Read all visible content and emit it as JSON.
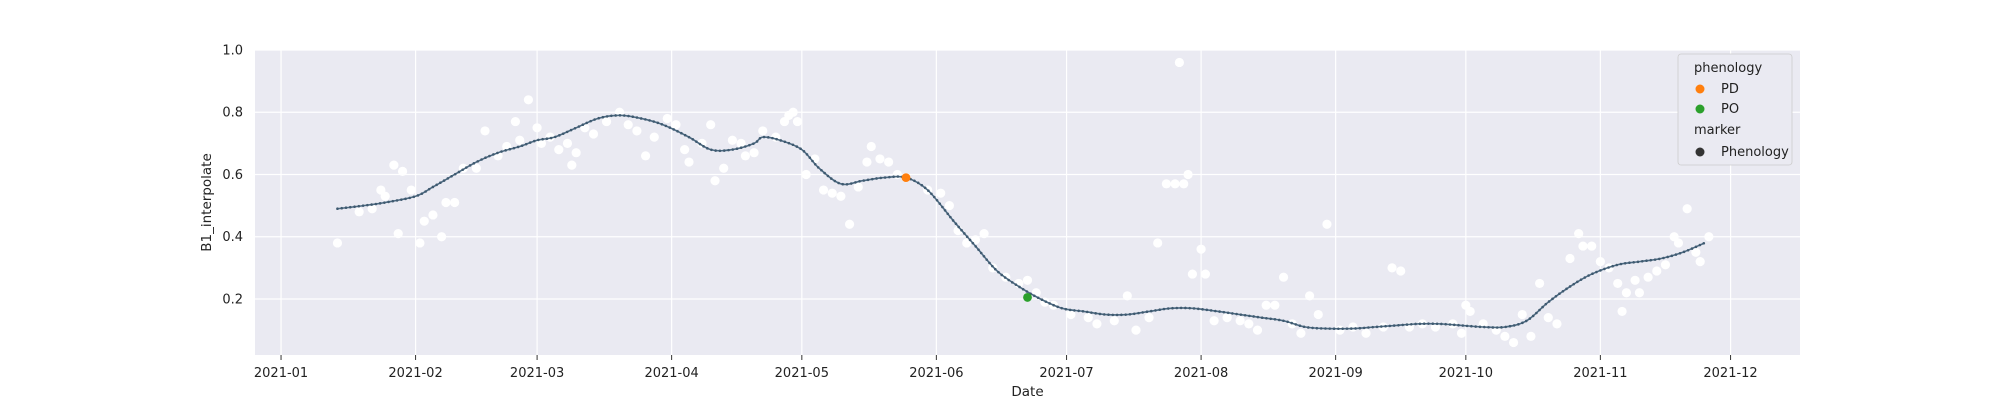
{
  "chart_data": {
    "type": "scatter",
    "xlabel": "Date",
    "ylabel": "B1_interpolate",
    "xlim": [
      "2020-12-26",
      "2021-12-17"
    ],
    "ylim": [
      0.02,
      1.0
    ],
    "grid": true,
    "x_ticks": [
      "2021-01",
      "2021-02",
      "2021-03",
      "2021-04",
      "2021-05",
      "2021-06",
      "2021-07",
      "2021-08",
      "2021-09",
      "2021-10",
      "2021-11",
      "2021-12"
    ],
    "y_ticks": [
      "0.2",
      "0.4",
      "0.6",
      "0.8",
      "1.0"
    ],
    "colors": {
      "background": "#eaeaf2",
      "grid": "#ffffff",
      "observations": "#ffffff",
      "curve": "#4c6a82",
      "PD": "#ff7f0e",
      "PO": "#2ca02c",
      "marker": "#333333"
    },
    "legend": {
      "placement": "top-right",
      "title_hue": "phenology",
      "title_marker": "marker",
      "entries": [
        {
          "label": "PD",
          "color": "#ff7f0e"
        },
        {
          "label": "PO",
          "color": "#2ca02c"
        }
      ],
      "marker_entries": [
        {
          "label": "Phenology",
          "color": "#333333"
        }
      ]
    },
    "interpolated_curve": [
      [
        "2021-01-14",
        0.49
      ],
      [
        "2021-01-20",
        0.5
      ],
      [
        "2021-01-25",
        0.51
      ],
      [
        "2021-02-01",
        0.53
      ],
      [
        "2021-02-05",
        0.56
      ],
      [
        "2021-02-10",
        0.6
      ],
      [
        "2021-02-15",
        0.64
      ],
      [
        "2021-02-20",
        0.67
      ],
      [
        "2021-02-25",
        0.69
      ],
      [
        "2021-03-01",
        0.71
      ],
      [
        "2021-03-05",
        0.72
      ],
      [
        "2021-03-10",
        0.75
      ],
      [
        "2021-03-15",
        0.78
      ],
      [
        "2021-03-20",
        0.79
      ],
      [
        "2021-03-25",
        0.78
      ],
      [
        "2021-03-30",
        0.76
      ],
      [
        "2021-04-05",
        0.72
      ],
      [
        "2021-04-10",
        0.68
      ],
      [
        "2021-04-15",
        0.68
      ],
      [
        "2021-04-20",
        0.7
      ],
      [
        "2021-04-22",
        0.72
      ],
      [
        "2021-04-26",
        0.71
      ],
      [
        "2021-05-01",
        0.68
      ],
      [
        "2021-05-05",
        0.62
      ],
      [
        "2021-05-10",
        0.57
      ],
      [
        "2021-05-15",
        0.58
      ],
      [
        "2021-05-20",
        0.59
      ],
      [
        "2021-05-25",
        0.59
      ],
      [
        "2021-05-30",
        0.55
      ],
      [
        "2021-06-05",
        0.45
      ],
      [
        "2021-06-10",
        0.37
      ],
      [
        "2021-06-15",
        0.29
      ],
      [
        "2021-06-20",
        0.24
      ],
      [
        "2021-06-25",
        0.2
      ],
      [
        "2021-06-30",
        0.17
      ],
      [
        "2021-07-05",
        0.16
      ],
      [
        "2021-07-10",
        0.15
      ],
      [
        "2021-07-15",
        0.15
      ],
      [
        "2021-07-20",
        0.16
      ],
      [
        "2021-07-25",
        0.17
      ],
      [
        "2021-07-30",
        0.17
      ],
      [
        "2021-08-05",
        0.16
      ],
      [
        "2021-08-10",
        0.15
      ],
      [
        "2021-08-15",
        0.14
      ],
      [
        "2021-08-20",
        0.13
      ],
      [
        "2021-08-25",
        0.11
      ],
      [
        "2021-08-30",
        0.105
      ],
      [
        "2021-09-05",
        0.105
      ],
      [
        "2021-09-10",
        0.11
      ],
      [
        "2021-09-15",
        0.115
      ],
      [
        "2021-09-20",
        0.12
      ],
      [
        "2021-09-25",
        0.12
      ],
      [
        "2021-09-30",
        0.115
      ],
      [
        "2021-10-05",
        0.11
      ],
      [
        "2021-10-10",
        0.11
      ],
      [
        "2021-10-15",
        0.13
      ],
      [
        "2021-10-20",
        0.19
      ],
      [
        "2021-10-25",
        0.24
      ],
      [
        "2021-10-30",
        0.28
      ],
      [
        "2021-11-05",
        0.31
      ],
      [
        "2021-11-10",
        0.32
      ],
      [
        "2021-11-15",
        0.33
      ],
      [
        "2021-11-20",
        0.35
      ],
      [
        "2021-11-25",
        0.38
      ]
    ],
    "observations": [
      [
        "2021-01-14",
        0.38
      ],
      [
        "2021-01-19",
        0.48
      ],
      [
        "2021-01-22",
        0.49
      ],
      [
        "2021-01-24",
        0.55
      ],
      [
        "2021-01-25",
        0.53
      ],
      [
        "2021-01-27",
        0.63
      ],
      [
        "2021-01-28",
        0.41
      ],
      [
        "2021-01-29",
        0.61
      ],
      [
        "2021-01-31",
        0.55
      ],
      [
        "2021-02-02",
        0.38
      ],
      [
        "2021-02-03",
        0.45
      ],
      [
        "2021-02-05",
        0.47
      ],
      [
        "2021-02-07",
        0.4
      ],
      [
        "2021-02-08",
        0.51
      ],
      [
        "2021-02-10",
        0.51
      ],
      [
        "2021-02-12",
        0.62
      ],
      [
        "2021-02-15",
        0.62
      ],
      [
        "2021-02-17",
        0.74
      ],
      [
        "2021-02-20",
        0.66
      ],
      [
        "2021-02-22",
        0.69
      ],
      [
        "2021-02-24",
        0.77
      ],
      [
        "2021-02-25",
        0.71
      ],
      [
        "2021-02-27",
        0.84
      ],
      [
        "2021-03-01",
        0.75
      ],
      [
        "2021-03-02",
        0.7
      ],
      [
        "2021-03-04",
        0.72
      ],
      [
        "2021-03-06",
        0.68
      ],
      [
        "2021-03-08",
        0.7
      ],
      [
        "2021-03-09",
        0.63
      ],
      [
        "2021-03-10",
        0.67
      ],
      [
        "2021-03-12",
        0.75
      ],
      [
        "2021-03-14",
        0.73
      ],
      [
        "2021-03-17",
        0.77
      ],
      [
        "2021-03-20",
        0.8
      ],
      [
        "2021-03-22",
        0.76
      ],
      [
        "2021-03-24",
        0.74
      ],
      [
        "2021-03-26",
        0.66
      ],
      [
        "2021-03-28",
        0.72
      ],
      [
        "2021-03-31",
        0.78
      ],
      [
        "2021-04-02",
        0.76
      ],
      [
        "2021-04-04",
        0.68
      ],
      [
        "2021-04-05",
        0.64
      ],
      [
        "2021-04-08",
        0.7
      ],
      [
        "2021-04-10",
        0.76
      ],
      [
        "2021-04-11",
        0.58
      ],
      [
        "2021-04-13",
        0.62
      ],
      [
        "2021-04-15",
        0.71
      ],
      [
        "2021-04-17",
        0.7
      ],
      [
        "2021-04-18",
        0.66
      ],
      [
        "2021-04-20",
        0.67
      ],
      [
        "2021-04-22",
        0.74
      ],
      [
        "2021-04-25",
        0.72
      ],
      [
        "2021-04-27",
        0.77
      ],
      [
        "2021-04-28",
        0.79
      ],
      [
        "2021-04-29",
        0.8
      ],
      [
        "2021-04-30",
        0.77
      ],
      [
        "2021-05-02",
        0.6
      ],
      [
        "2021-05-04",
        0.65
      ],
      [
        "2021-05-06",
        0.55
      ],
      [
        "2021-05-08",
        0.54
      ],
      [
        "2021-05-10",
        0.53
      ],
      [
        "2021-05-12",
        0.44
      ],
      [
        "2021-05-14",
        0.56
      ],
      [
        "2021-05-16",
        0.64
      ],
      [
        "2021-05-17",
        0.69
      ],
      [
        "2021-05-19",
        0.65
      ],
      [
        "2021-05-21",
        0.64
      ],
      [
        "2021-05-23",
        0.6
      ],
      [
        "2021-05-25",
        0.59
      ],
      [
        "2021-05-30",
        0.55
      ],
      [
        "2021-06-02",
        0.54
      ],
      [
        "2021-06-04",
        0.5
      ],
      [
        "2021-06-06",
        0.42
      ],
      [
        "2021-06-08",
        0.38
      ],
      [
        "2021-06-10",
        0.39
      ],
      [
        "2021-06-12",
        0.41
      ],
      [
        "2021-06-14",
        0.3
      ],
      [
        "2021-06-17",
        0.27
      ],
      [
        "2021-06-20",
        0.25
      ],
      [
        "2021-06-22",
        0.26
      ],
      [
        "2021-06-24",
        0.22
      ],
      [
        "2021-06-26",
        0.19
      ],
      [
        "2021-06-28",
        0.18
      ],
      [
        "2021-07-02",
        0.15
      ],
      [
        "2021-07-06",
        0.14
      ],
      [
        "2021-07-08",
        0.12
      ],
      [
        "2021-07-12",
        0.13
      ],
      [
        "2021-07-15",
        0.21
      ],
      [
        "2021-07-17",
        0.1
      ],
      [
        "2021-07-20",
        0.14
      ],
      [
        "2021-07-22",
        0.38
      ],
      [
        "2021-07-24",
        0.57
      ],
      [
        "2021-07-26",
        0.57
      ],
      [
        "2021-07-27",
        0.96
      ],
      [
        "2021-07-28",
        0.57
      ],
      [
        "2021-07-29",
        0.6
      ],
      [
        "2021-07-30",
        0.28
      ],
      [
        "2021-08-01",
        0.36
      ],
      [
        "2021-08-02",
        0.28
      ],
      [
        "2021-08-04",
        0.13
      ],
      [
        "2021-08-07",
        0.14
      ],
      [
        "2021-08-10",
        0.13
      ],
      [
        "2021-08-12",
        0.12
      ],
      [
        "2021-08-14",
        0.1
      ],
      [
        "2021-08-16",
        0.18
      ],
      [
        "2021-08-18",
        0.18
      ],
      [
        "2021-08-20",
        0.27
      ],
      [
        "2021-08-22",
        0.12
      ],
      [
        "2021-08-24",
        0.09
      ],
      [
        "2021-08-26",
        0.21
      ],
      [
        "2021-08-28",
        0.15
      ],
      [
        "2021-08-30",
        0.44
      ],
      [
        "2021-09-02",
        0.1
      ],
      [
        "2021-09-05",
        0.11
      ],
      [
        "2021-09-08",
        0.09
      ],
      [
        "2021-09-12",
        0.11
      ],
      [
        "2021-09-14",
        0.3
      ],
      [
        "2021-09-16",
        0.29
      ],
      [
        "2021-09-18",
        0.11
      ],
      [
        "2021-09-21",
        0.12
      ],
      [
        "2021-09-24",
        0.11
      ],
      [
        "2021-09-28",
        0.12
      ],
      [
        "2021-09-30",
        0.09
      ],
      [
        "2021-10-01",
        0.18
      ],
      [
        "2021-10-02",
        0.16
      ],
      [
        "2021-10-05",
        0.12
      ],
      [
        "2021-10-08",
        0.1
      ],
      [
        "2021-10-10",
        0.08
      ],
      [
        "2021-10-12",
        0.06
      ],
      [
        "2021-10-14",
        0.15
      ],
      [
        "2021-10-16",
        0.08
      ],
      [
        "2021-10-18",
        0.25
      ],
      [
        "2021-10-20",
        0.14
      ],
      [
        "2021-10-22",
        0.12
      ],
      [
        "2021-10-25",
        0.33
      ],
      [
        "2021-10-27",
        0.41
      ],
      [
        "2021-10-28",
        0.37
      ],
      [
        "2021-10-30",
        0.37
      ],
      [
        "2021-11-01",
        0.32
      ],
      [
        "2021-11-03",
        0.3
      ],
      [
        "2021-11-05",
        0.25
      ],
      [
        "2021-11-06",
        0.16
      ],
      [
        "2021-11-07",
        0.22
      ],
      [
        "2021-11-09",
        0.26
      ],
      [
        "2021-11-10",
        0.22
      ],
      [
        "2021-11-12",
        0.27
      ],
      [
        "2021-11-14",
        0.29
      ],
      [
        "2021-11-16",
        0.31
      ],
      [
        "2021-11-18",
        0.4
      ],
      [
        "2021-11-19",
        0.38
      ],
      [
        "2021-11-21",
        0.49
      ],
      [
        "2021-11-23",
        0.35
      ],
      [
        "2021-11-24",
        0.32
      ],
      [
        "2021-11-26",
        0.4
      ]
    ],
    "phenology_points": [
      {
        "label": "PD",
        "x": "2021-05-25",
        "y": 0.59,
        "color": "#ff7f0e"
      },
      {
        "label": "PO",
        "x": "2021-06-22",
        "y": 0.205,
        "color": "#2ca02c"
      }
    ]
  }
}
